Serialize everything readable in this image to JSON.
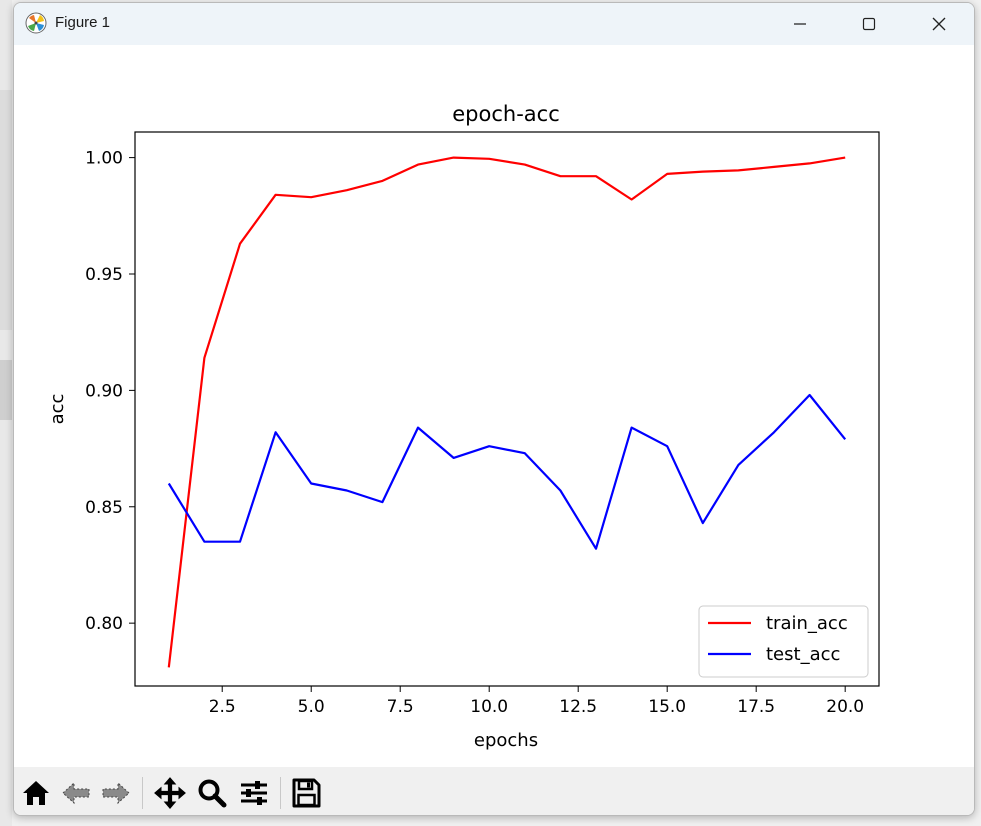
{
  "window": {
    "title": "Figure 1",
    "controls": {
      "minimize": "minimize",
      "maximize": "maximize",
      "close": "close"
    }
  },
  "toolbar": {
    "tools": [
      {
        "name": "home",
        "icon": "home-icon"
      },
      {
        "name": "back",
        "icon": "arrow-left-icon"
      },
      {
        "name": "forward",
        "icon": "arrow-right-icon"
      },
      {
        "name": "pan",
        "icon": "move-icon"
      },
      {
        "name": "zoom",
        "icon": "magnifier-icon"
      },
      {
        "name": "configure-subplots",
        "icon": "sliders-icon"
      },
      {
        "name": "save",
        "icon": "floppy-disk-icon"
      }
    ]
  },
  "chart_data": {
    "type": "line",
    "title": "epoch-acc",
    "xlabel": "epochs",
    "ylabel": "acc",
    "xlim": [
      0.05,
      20.95
    ],
    "ylim": [
      0.773,
      1.011
    ],
    "xticks": [
      2.5,
      5.0,
      7.5,
      10.0,
      12.5,
      15.0,
      17.5,
      20.0
    ],
    "xtick_labels": [
      "2.5",
      "5.0",
      "7.5",
      "10.0",
      "12.5",
      "15.0",
      "17.5",
      "20.0"
    ],
    "yticks": [
      0.8,
      0.85,
      0.9,
      0.95,
      1.0
    ],
    "ytick_labels": [
      "0.80",
      "0.85",
      "0.90",
      "0.95",
      "1.00"
    ],
    "grid": false,
    "legend_position": "lower-right",
    "x": [
      1,
      2,
      3,
      4,
      5,
      6,
      7,
      8,
      9,
      10,
      11,
      12,
      13,
      14,
      15,
      16,
      17,
      18,
      19,
      20
    ],
    "series": [
      {
        "name": "train_acc",
        "color": "#ff0000",
        "values": [
          0.781,
          0.914,
          0.963,
          0.984,
          0.983,
          0.986,
          0.99,
          0.997,
          1.0,
          0.9995,
          0.997,
          0.992,
          0.992,
          0.982,
          0.993,
          0.994,
          0.9945,
          0.996,
          0.9975,
          1.0
        ]
      },
      {
        "name": "test_acc",
        "color": "#0000ff",
        "values": [
          0.86,
          0.835,
          0.835,
          0.882,
          0.86,
          0.857,
          0.852,
          0.884,
          0.871,
          0.876,
          0.873,
          0.857,
          0.832,
          0.884,
          0.876,
          0.843,
          0.868,
          0.882,
          0.898,
          0.879
        ]
      }
    ]
  }
}
